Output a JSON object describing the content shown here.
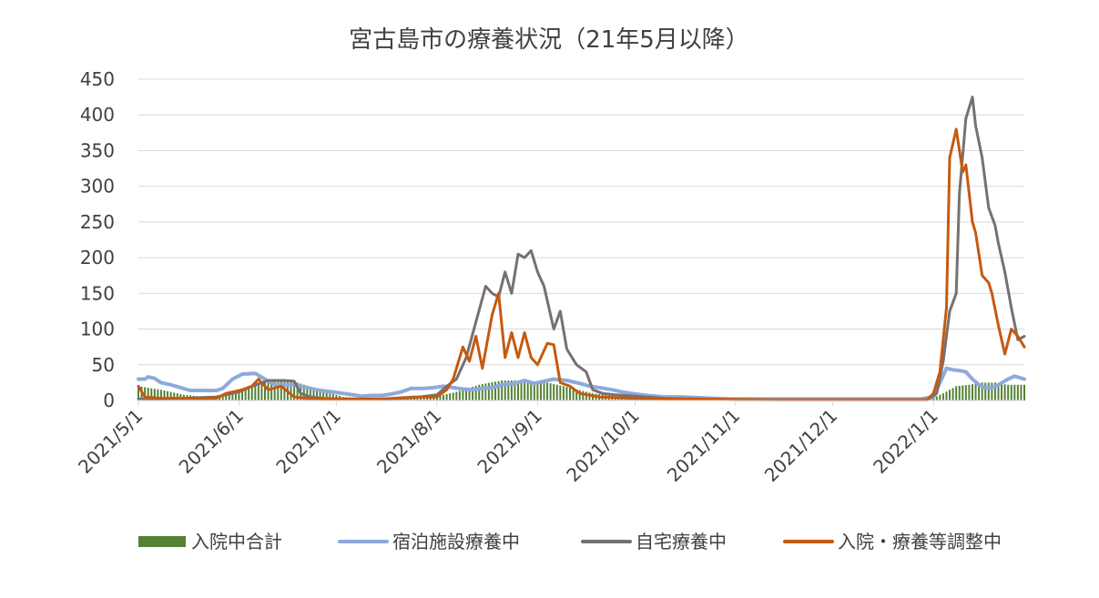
{
  "chart_data": {
    "type": "line",
    "title": "宮古島市の療養状況（21年5月以降）",
    "xlabel": "",
    "ylabel": "",
    "ylim": [
      0,
      450
    ],
    "yticks": [
      "0",
      "50",
      "100",
      "150",
      "200",
      "250",
      "300",
      "350",
      "400",
      "450"
    ],
    "xticks": [
      "2021/5/1",
      "2021/6/1",
      "2021/7/1",
      "2021/8/1",
      "2021/9/1",
      "2021/10/1",
      "2021/11/1",
      "2021/12/1",
      "2022/1/1"
    ],
    "x_range": [
      "2021/5/1",
      "2022/1/29"
    ],
    "gridlines": true,
    "legend_position": "bottom",
    "series": [
      {
        "name": "入院中合計",
        "kind": "bar",
        "color": "#548235",
        "points": [
          [
            "2021/5/1",
            20
          ],
          [
            "2021/5/8",
            15
          ],
          [
            "2021/5/15",
            8
          ],
          [
            "2021/5/22",
            5
          ],
          [
            "2021/5/29",
            8
          ],
          [
            "2021/6/5",
            22
          ],
          [
            "2021/6/12",
            30
          ],
          [
            "2021/6/19",
            25
          ],
          [
            "2021/6/26",
            15
          ],
          [
            "2021/7/3",
            5
          ],
          [
            "2021/7/10",
            3
          ],
          [
            "2021/7/17",
            3
          ],
          [
            "2021/7/24",
            3
          ],
          [
            "2021/7/31",
            5
          ],
          [
            "2021/8/7",
            12
          ],
          [
            "2021/8/14",
            22
          ],
          [
            "2021/8/21",
            28
          ],
          [
            "2021/8/28",
            28
          ],
          [
            "2021/9/4",
            25
          ],
          [
            "2021/9/11",
            18
          ],
          [
            "2021/9/18",
            10
          ],
          [
            "2021/9/25",
            6
          ],
          [
            "2021/10/2",
            4
          ],
          [
            "2021/10/9",
            3
          ],
          [
            "2021/10/16",
            2
          ],
          [
            "2021/10/23",
            1
          ],
          [
            "2021/10/30",
            1
          ],
          [
            "2021/11/10",
            1
          ],
          [
            "2021/11/30",
            1
          ],
          [
            "2021/12/20",
            1
          ],
          [
            "2021/12/31",
            2
          ],
          [
            "2022/1/4",
            10
          ],
          [
            "2022/1/8",
            20
          ],
          [
            "2022/1/12",
            22
          ],
          [
            "2022/1/16",
            25
          ],
          [
            "2022/1/20",
            25
          ],
          [
            "2022/1/24",
            22
          ],
          [
            "2022/1/29",
            22
          ]
        ]
      },
      {
        "name": "宿泊施設療養中",
        "kind": "line",
        "color": "#8EA9DB",
        "points": [
          [
            "2021/5/1",
            30
          ],
          [
            "2021/5/3",
            30
          ],
          [
            "2021/5/4",
            33
          ],
          [
            "2021/5/6",
            31
          ],
          [
            "2021/5/8",
            25
          ],
          [
            "2021/5/11",
            22
          ],
          [
            "2021/5/14",
            18
          ],
          [
            "2021/5/17",
            14
          ],
          [
            "2021/5/20",
            14
          ],
          [
            "2021/5/25",
            14
          ],
          [
            "2021/5/27",
            17
          ],
          [
            "2021/5/30",
            30
          ],
          [
            "2021/6/2",
            37
          ],
          [
            "2021/6/6",
            38
          ],
          [
            "2021/6/9",
            30
          ],
          [
            "2021/6/12",
            22
          ],
          [
            "2021/6/15",
            22
          ],
          [
            "2021/6/18",
            22
          ],
          [
            "2021/6/22",
            18
          ],
          [
            "2021/6/26",
            14
          ],
          [
            "2021/6/30",
            12
          ],
          [
            "2021/7/3",
            10
          ],
          [
            "2021/7/6",
            8
          ],
          [
            "2021/7/9",
            6
          ],
          [
            "2021/7/12",
            7
          ],
          [
            "2021/7/15",
            7
          ],
          [
            "2021/7/18",
            9
          ],
          [
            "2021/7/21",
            12
          ],
          [
            "2021/7/24",
            17
          ],
          [
            "2021/7/28",
            17
          ],
          [
            "2021/7/31",
            18
          ],
          [
            "2021/8/3",
            20
          ],
          [
            "2021/8/6",
            18
          ],
          [
            "2021/8/9",
            16
          ],
          [
            "2021/8/12",
            15
          ],
          [
            "2021/8/15",
            17
          ],
          [
            "2021/8/18",
            18
          ],
          [
            "2021/8/21",
            22
          ],
          [
            "2021/8/25",
            24
          ],
          [
            "2021/8/28",
            28
          ],
          [
            "2021/8/31",
            24
          ],
          [
            "2021/9/3",
            27
          ],
          [
            "2021/9/6",
            30
          ],
          [
            "2021/9/10",
            28
          ],
          [
            "2021/9/14",
            24
          ],
          [
            "2021/9/17",
            20
          ],
          [
            "2021/9/20",
            18
          ],
          [
            "2021/9/24",
            15
          ],
          [
            "2021/9/27",
            12
          ],
          [
            "2021/10/1",
            9
          ],
          [
            "2021/10/5",
            7
          ],
          [
            "2021/10/10",
            5
          ],
          [
            "2021/10/15",
            5
          ],
          [
            "2021/10/20",
            4
          ],
          [
            "2021/10/25",
            3
          ],
          [
            "2021/10/31",
            2
          ],
          [
            "2021/11/10",
            2
          ],
          [
            "2021/11/20",
            2
          ],
          [
            "2021/11/30",
            2
          ],
          [
            "2021/12/10",
            2
          ],
          [
            "2021/12/20",
            2
          ],
          [
            "2021/12/28",
            2
          ],
          [
            "2022/1/1",
            5
          ],
          [
            "2022/1/3",
            25
          ],
          [
            "2022/1/5",
            45
          ],
          [
            "2022/1/7",
            43
          ],
          [
            "2022/1/9",
            42
          ],
          [
            "2022/1/11",
            40
          ],
          [
            "2022/1/13",
            30
          ],
          [
            "2022/1/15",
            22
          ],
          [
            "2022/1/17",
            18
          ],
          [
            "2022/1/19",
            18
          ],
          [
            "2022/1/21",
            22
          ],
          [
            "2022/1/24",
            30
          ],
          [
            "2022/1/26",
            34
          ],
          [
            "2022/1/29",
            30
          ]
        ]
      },
      {
        "name": "自宅療養中",
        "kind": "line",
        "color": "#767171",
        "points": [
          [
            "2021/5/1",
            2
          ],
          [
            "2021/5/15",
            3
          ],
          [
            "2021/5/25",
            5
          ],
          [
            "2021/6/1",
            12
          ],
          [
            "2021/6/5",
            20
          ],
          [
            "2021/6/10",
            28
          ],
          [
            "2021/6/15",
            28
          ],
          [
            "2021/6/18",
            27
          ],
          [
            "2021/6/20",
            10
          ],
          [
            "2021/6/23",
            5
          ],
          [
            "2021/6/27",
            3
          ],
          [
            "2021/7/1",
            2
          ],
          [
            "2021/7/15",
            2
          ],
          [
            "2021/7/25",
            4
          ],
          [
            "2021/8/1",
            8
          ],
          [
            "2021/8/4",
            20
          ],
          [
            "2021/8/7",
            30
          ],
          [
            "2021/8/10",
            60
          ],
          [
            "2021/8/13",
            110
          ],
          [
            "2021/8/16",
            160
          ],
          [
            "2021/8/18",
            150
          ],
          [
            "2021/8/20",
            145
          ],
          [
            "2021/8/22",
            180
          ],
          [
            "2021/8/24",
            150
          ],
          [
            "2021/8/26",
            205
          ],
          [
            "2021/8/28",
            200
          ],
          [
            "2021/8/30",
            210
          ],
          [
            "2021/9/1",
            180
          ],
          [
            "2021/9/3",
            160
          ],
          [
            "2021/9/6",
            100
          ],
          [
            "2021/9/8",
            125
          ],
          [
            "2021/9/10",
            72
          ],
          [
            "2021/9/13",
            50
          ],
          [
            "2021/9/16",
            40
          ],
          [
            "2021/9/18",
            15
          ],
          [
            "2021/9/21",
            10
          ],
          [
            "2021/9/25",
            8
          ],
          [
            "2021/10/1",
            6
          ],
          [
            "2021/10/10",
            3
          ],
          [
            "2021/10/20",
            2
          ],
          [
            "2021/11/1",
            1
          ],
          [
            "2021/12/1",
            1
          ],
          [
            "2021/12/30",
            1
          ],
          [
            "2022/1/2",
            10
          ],
          [
            "2022/1/4",
            55
          ],
          [
            "2022/1/6",
            125
          ],
          [
            "2022/1/8",
            150
          ],
          [
            "2022/1/9",
            290
          ],
          [
            "2022/1/11",
            395
          ],
          [
            "2022/1/13",
            425
          ],
          [
            "2022/1/14",
            385
          ],
          [
            "2022/1/16",
            340
          ],
          [
            "2022/1/18",
            270
          ],
          [
            "2022/1/20",
            245
          ],
          [
            "2022/1/21",
            220
          ],
          [
            "2022/1/23",
            180
          ],
          [
            "2022/1/25",
            130
          ],
          [
            "2022/1/27",
            85
          ],
          [
            "2022/1/29",
            90
          ]
        ]
      },
      {
        "name": "入院・療養等調整中",
        "kind": "line",
        "color": "#C55A11",
        "points": [
          [
            "2021/5/1",
            20
          ],
          [
            "2021/5/3",
            5
          ],
          [
            "2021/5/8",
            3
          ],
          [
            "2021/5/15",
            3
          ],
          [
            "2021/5/25",
            3
          ],
          [
            "2021/5/28",
            10
          ],
          [
            "2021/6/2",
            15
          ],
          [
            "2021/6/5",
            20
          ],
          [
            "2021/6/7",
            30
          ],
          [
            "2021/6/10",
            15
          ],
          [
            "2021/6/14",
            20
          ],
          [
            "2021/6/18",
            5
          ],
          [
            "2021/6/22",
            3
          ],
          [
            "2021/7/1",
            2
          ],
          [
            "2021/7/15",
            2
          ],
          [
            "2021/7/25",
            5
          ],
          [
            "2021/8/1",
            5
          ],
          [
            "2021/8/4",
            15
          ],
          [
            "2021/8/6",
            30
          ],
          [
            "2021/8/9",
            75
          ],
          [
            "2021/8/11",
            55
          ],
          [
            "2021/8/13",
            90
          ],
          [
            "2021/8/15",
            45
          ],
          [
            "2021/8/18",
            120
          ],
          [
            "2021/8/20",
            150
          ],
          [
            "2021/8/22",
            60
          ],
          [
            "2021/8/24",
            95
          ],
          [
            "2021/8/26",
            60
          ],
          [
            "2021/8/28",
            95
          ],
          [
            "2021/8/30",
            60
          ],
          [
            "2021/9/1",
            50
          ],
          [
            "2021/9/4",
            80
          ],
          [
            "2021/9/6",
            78
          ],
          [
            "2021/9/8",
            25
          ],
          [
            "2021/9/11",
            20
          ],
          [
            "2021/9/14",
            10
          ],
          [
            "2021/9/20",
            5
          ],
          [
            "2021/10/1",
            3
          ],
          [
            "2021/10/20",
            2
          ],
          [
            "2021/11/15",
            1
          ],
          [
            "2021/12/15",
            1
          ],
          [
            "2021/12/30",
            1
          ],
          [
            "2022/1/1",
            10
          ],
          [
            "2022/1/3",
            40
          ],
          [
            "2022/1/5",
            130
          ],
          [
            "2022/1/6",
            340
          ],
          [
            "2022/1/8",
            380
          ],
          [
            "2022/1/10",
            320
          ],
          [
            "2022/1/11",
            330
          ],
          [
            "2022/1/13",
            250
          ],
          [
            "2022/1/14",
            235
          ],
          [
            "2022/1/16",
            175
          ],
          [
            "2022/1/18",
            165
          ],
          [
            "2022/1/19",
            150
          ],
          [
            "2022/1/21",
            105
          ],
          [
            "2022/1/23",
            65
          ],
          [
            "2022/1/25",
            100
          ],
          [
            "2022/1/27",
            90
          ],
          [
            "2022/1/29",
            75
          ]
        ]
      }
    ]
  }
}
